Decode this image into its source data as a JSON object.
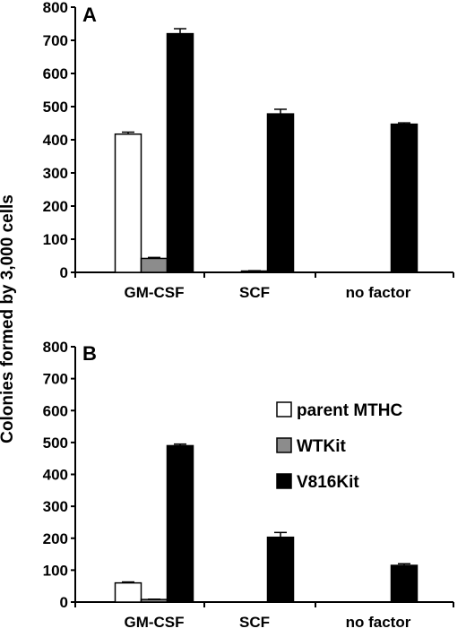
{
  "y_axis_title": "Colonies formed by 3,000 cells",
  "legend": [
    {
      "label": "parent MTHC",
      "color": "#ffffff"
    },
    {
      "label": "WTKit",
      "color": "#8c8c8c"
    },
    {
      "label": "V816Kit",
      "color": "#000000"
    }
  ],
  "chart_data": [
    {
      "type": "bar",
      "panel": "A",
      "categories": [
        "GM-CSF",
        "SCF",
        "no factor"
      ],
      "ylim": [
        0,
        800
      ],
      "yticks": [
        0,
        100,
        200,
        300,
        400,
        500,
        600,
        700,
        800
      ],
      "series": [
        {
          "name": "parent MTHC",
          "color": "#ffffff",
          "values": [
            417,
            0,
            0
          ],
          "errors": [
            6,
            0,
            0
          ]
        },
        {
          "name": "WTKit",
          "color": "#8c8c8c",
          "values": [
            42,
            4,
            0
          ],
          "errors": [
            3,
            1,
            0
          ]
        },
        {
          "name": "V816Kit",
          "color": "#000000",
          "values": [
            720,
            478,
            447
          ],
          "errors": [
            15,
            14,
            4
          ]
        }
      ]
    },
    {
      "type": "bar",
      "panel": "B",
      "categories": [
        "GM-CSF",
        "SCF",
        "no factor"
      ],
      "ylim": [
        0,
        800
      ],
      "yticks": [
        0,
        100,
        200,
        300,
        400,
        500,
        600,
        700,
        800
      ],
      "series": [
        {
          "name": "parent MTHC",
          "color": "#ffffff",
          "values": [
            60,
            0,
            0
          ],
          "errors": [
            3,
            0,
            0
          ]
        },
        {
          "name": "WTKit",
          "color": "#8c8c8c",
          "values": [
            8,
            0,
            0
          ],
          "errors": [
            1,
            0,
            0
          ]
        },
        {
          "name": "V816Kit",
          "color": "#000000",
          "values": [
            490,
            203,
            115
          ],
          "errors": [
            5,
            15,
            5
          ]
        }
      ]
    }
  ]
}
